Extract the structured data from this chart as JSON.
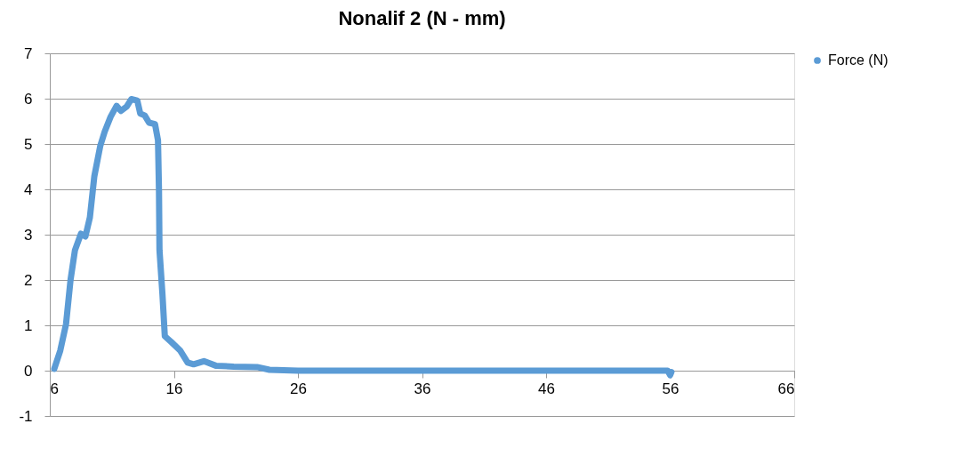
{
  "chart_data": {
    "type": "line",
    "title": "Nonalif 2 (N - mm)",
    "series": [
      {
        "name": "Force (N)",
        "color": "#5b9bd5",
        "x": [
          6.36,
          6.84,
          7.31,
          7.67,
          8.03,
          8.51,
          8.87,
          9.23,
          9.59,
          10.06,
          10.42,
          10.9,
          11.38,
          11.73,
          12.21,
          12.57,
          13.05,
          13.29,
          13.65,
          14.0,
          14.48,
          14.72,
          14.8,
          14.84,
          15.08,
          15.27,
          15.8,
          16.52,
          17.11,
          17.59,
          18.42,
          19.38,
          20.82,
          22.7,
          23.7,
          26,
          30,
          34,
          38,
          42,
          46,
          50,
          54,
          55.8,
          56.0,
          56.1
        ],
        "values": [
          0.04,
          0.44,
          1.03,
          2.0,
          2.66,
          3.02,
          2.96,
          3.38,
          4.29,
          4.95,
          5.27,
          5.6,
          5.84,
          5.73,
          5.83,
          5.99,
          5.96,
          5.67,
          5.63,
          5.47,
          5.44,
          5.08,
          3.97,
          2.66,
          1.68,
          0.76,
          0.63,
          0.44,
          0.18,
          0.14,
          0.21,
          0.11,
          0.09,
          0.08,
          0.02,
          0,
          0,
          0,
          0,
          0,
          0,
          0,
          0,
          0,
          -0.1,
          -0.03
        ]
      }
    ],
    "xlim": [
      6,
      66
    ],
    "xticks": [
      6,
      16,
      26,
      36,
      46,
      56,
      66
    ],
    "ylim": [
      -1,
      7
    ],
    "yticks": [
      -1,
      0,
      1,
      2,
      3,
      4,
      5,
      6,
      7
    ],
    "grid": "y",
    "legend": "right",
    "marker": "none",
    "line_style": "solid"
  }
}
